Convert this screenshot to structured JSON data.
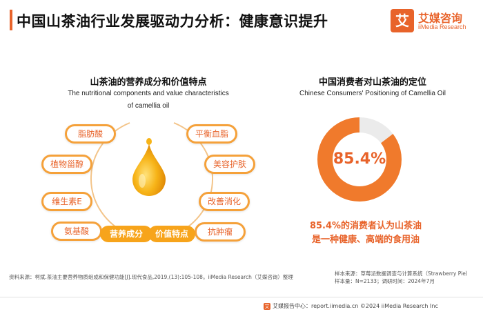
{
  "header": {
    "title": "中国山茶油行业发展驱动力分析：健康意识提升",
    "brand_mark": "艾",
    "brand_cn": "艾媒咨询",
    "brand_en": "iiMedia Research",
    "accent_color": "#e8632a"
  },
  "left": {
    "title": "山茶油的营养成分和价值特点",
    "subtitle_line1": "The nutritional components and value characteristics",
    "subtitle_line2": "of camellia oil",
    "nutrients": [
      "脂肪酸",
      "植物甾醇",
      "维生素E",
      "氨基酸"
    ],
    "values": [
      "平衡血脂",
      "美容护肤",
      "改善消化",
      "抗肿瘤"
    ],
    "label_nutrients": "营养成分",
    "label_values": "价值特点",
    "drop_icon": "oil-drop-icon"
  },
  "right": {
    "title": "中国消费者对山茶油的定位",
    "subtitle": "Chinese Consumers' Positioning of Camellia Oil",
    "pct_label": "85.4%",
    "caption_line1": "85.4%的消费者认为山茶油",
    "caption_line2": "是一种健康、高端的食用油"
  },
  "chart_data": {
    "type": "pie",
    "title": "中国消费者对山茶油的定位",
    "slices": [
      {
        "label": "健康、高端的食用油",
        "value": 85.4,
        "color": "#f07a2c"
      },
      {
        "label": "",
        "value": 14.6,
        "color": "#ebebeb"
      }
    ]
  },
  "footer": {
    "source": "资料来源：柯斌.茶油主要营养物质组成和保健功能[J].现代食品,2019,(13):105-108。iiMedia Research（艾媒咨询）整理",
    "sample_line1": "样本来源：草莓派数据调查与计算系统（Strawberry Pie）",
    "sample_line2": "样本量：N=2133；调研时间：2024年7月",
    "bottom": "艾媒报告中心：report.iimedia.cn ©2024 iiMedia Research Inc"
  }
}
